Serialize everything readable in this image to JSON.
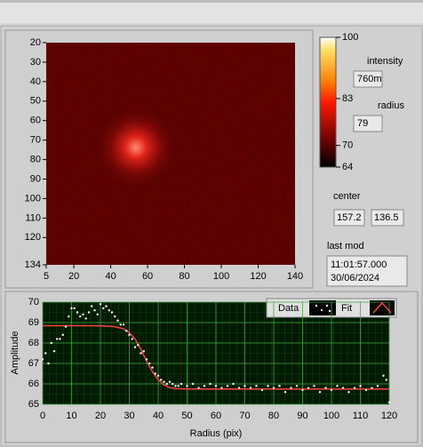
{
  "image_graph": {
    "xlim": [
      5,
      140
    ],
    "xticks": [
      5,
      20,
      40,
      60,
      80,
      100,
      120,
      140
    ],
    "ylim": [
      20,
      134
    ],
    "yticks": [
      20,
      30,
      40,
      50,
      60,
      70,
      80,
      90,
      100,
      110,
      120,
      134
    ],
    "colorbar": {
      "lim": [
        64,
        100
      ],
      "ticks": [
        100,
        83,
        70,
        64
      ]
    }
  },
  "indicators": {
    "intensity_label": "intensity",
    "intensity": "760m",
    "radius_label": "radius",
    "radius": 79,
    "center_label": "center",
    "center_x": 157.2,
    "center_y": 136.5,
    "last_mod_label": "last mod",
    "last_mod_time": "11:01:57.000",
    "last_mod_date": "30/06/2024"
  },
  "radial_plot": {
    "type": "scatter",
    "x_label": "Radius (pix)",
    "y_label": "Amplitude",
    "xlim": [
      0,
      120
    ],
    "xticks": [
      0,
      10,
      20,
      30,
      40,
      50,
      60,
      70,
      80,
      90,
      100,
      110,
      120
    ],
    "ylim": [
      65,
      70
    ],
    "yticks": [
      65,
      66,
      67,
      68,
      69,
      70
    ],
    "grid": true,
    "series": [
      {
        "name": "Data",
        "color": "#ffffff",
        "x": [
          0,
          1,
          2,
          3,
          4,
          5,
          6,
          7,
          8,
          9,
          10,
          11,
          12,
          13,
          14,
          15,
          16,
          17,
          18,
          19,
          20,
          21,
          22,
          23,
          24,
          25,
          26,
          27,
          28,
          29,
          30,
          31,
          32,
          33,
          34,
          35,
          36,
          37,
          38,
          39,
          40,
          41,
          42,
          43,
          44,
          45,
          46,
          47,
          48,
          50,
          52,
          54,
          56,
          58,
          60,
          62,
          64,
          66,
          68,
          70,
          72,
          74,
          76,
          78,
          80,
          82,
          84,
          86,
          88,
          90,
          92,
          94,
          96,
          98,
          100,
          102,
          104,
          106,
          108,
          110,
          112,
          114,
          116,
          118,
          119,
          120
        ],
        "values": [
          67.2,
          67.5,
          67.0,
          68.0,
          67.6,
          68.2,
          68.2,
          68.4,
          68.8,
          69.3,
          69.7,
          69.7,
          69.5,
          69.3,
          69.4,
          69.2,
          69.5,
          69.8,
          69.6,
          69.4,
          69.9,
          69.7,
          69.8,
          69.6,
          69.5,
          69.3,
          69.1,
          68.9,
          68.9,
          68.6,
          68.4,
          68.2,
          67.8,
          67.9,
          67.5,
          67.6,
          67.2,
          67.0,
          66.8,
          66.5,
          66.4,
          66.2,
          66.1,
          66.0,
          66.1,
          66.0,
          65.9,
          65.9,
          66.0,
          65.9,
          66.0,
          65.8,
          65.9,
          66.0,
          65.9,
          65.8,
          65.9,
          66.0,
          65.8,
          65.9,
          65.8,
          65.9,
          65.7,
          65.9,
          65.8,
          65.9,
          65.6,
          65.8,
          65.9,
          65.7,
          65.8,
          65.9,
          65.6,
          65.8,
          65.7,
          65.9,
          65.8,
          65.6,
          65.8,
          65.9,
          65.7,
          65.8,
          65.9,
          66.4,
          66.2,
          65.1
        ]
      },
      {
        "name": "Fit",
        "color": "#ff4040",
        "x": [
          0,
          5,
          10,
          15,
          20,
          25,
          28,
          30,
          32,
          34,
          36,
          38,
          40,
          42,
          44,
          46,
          50,
          60,
          80,
          100,
          120
        ],
        "values": [
          68.85,
          68.85,
          68.85,
          68.85,
          68.84,
          68.8,
          68.7,
          68.5,
          68.2,
          67.7,
          67.1,
          66.6,
          66.2,
          65.95,
          65.82,
          65.77,
          65.75,
          65.75,
          65.75,
          65.75,
          65.75
        ]
      }
    ]
  }
}
